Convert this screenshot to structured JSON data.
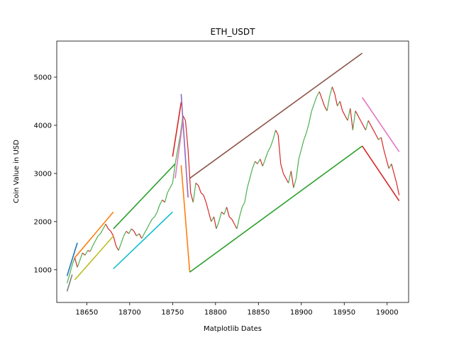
{
  "chart_data": {
    "type": "line",
    "title": "ETH_USDT",
    "xlabel": "Matplotlib Dates",
    "ylabel": "Coin Value in USD",
    "xlim": [
      18615,
      19025
    ],
    "ylim": [
      320,
      5750
    ],
    "x_ticks": [
      18650,
      18700,
      18750,
      18800,
      18850,
      18900,
      18950,
      19000
    ],
    "x_tick_labels": [
      "18650",
      "18700",
      "18750",
      "18800",
      "18850",
      "18900",
      "18950",
      "19000"
    ],
    "y_ticks": [
      1000,
      2000,
      3000,
      4000,
      5000
    ],
    "y_tick_labels": [
      "1000",
      "2000",
      "3000",
      "4000",
      "5000"
    ],
    "grid": false,
    "legend": "none",
    "price_series": {
      "name": "",
      "up_color": "#4caf50",
      "down_color": "#d62728",
      "x": [
        18627,
        18630,
        18633,
        18636,
        18639,
        18642,
        18645,
        18648,
        18651,
        18654,
        18657,
        18660,
        18663,
        18666,
        18669,
        18672,
        18675,
        18678,
        18681,
        18684,
        18687,
        18690,
        18693,
        18696,
        18699,
        18702,
        18705,
        18708,
        18711,
        18714,
        18717,
        18720,
        18723,
        18726,
        18729,
        18732,
        18735,
        18738,
        18741,
        18744,
        18747,
        18750,
        18753,
        18756,
        18759,
        18762,
        18765,
        18768,
        18771,
        18774,
        18777,
        18780,
        18783,
        18786,
        18789,
        18792,
        18795,
        18798,
        18801,
        18804,
        18807,
        18810,
        18813,
        18816,
        18819,
        18822,
        18825,
        18828,
        18831,
        18834,
        18837,
        18840,
        18843,
        18846,
        18849,
        18852,
        18855,
        18858,
        18861,
        18864,
        18867,
        18870,
        18873,
        18876,
        18879,
        18882,
        18885,
        18888,
        18891,
        18894,
        18897,
        18900,
        18903,
        18906,
        18909,
        18912,
        18915,
        18918,
        18921,
        18924,
        18927,
        18930,
        18933,
        18936,
        18939,
        18942,
        18945,
        18948,
        18951,
        18954,
        18957,
        18960,
        18963,
        18966,
        18969,
        18972,
        18975,
        18978,
        18981,
        18984,
        18987,
        18990,
        18993,
        18996,
        18999,
        19002,
        19005,
        19008,
        19011,
        19014
      ],
      "y": [
        720,
        900,
        1100,
        1250,
        1050,
        1200,
        1350,
        1300,
        1400,
        1380,
        1500,
        1600,
        1700,
        1750,
        1850,
        1950,
        1850,
        1800,
        1700,
        1500,
        1400,
        1550,
        1700,
        1800,
        1750,
        1850,
        1800,
        1700,
        1750,
        1650,
        1750,
        1850,
        1950,
        2050,
        2100,
        2200,
        2350,
        2450,
        2400,
        2600,
        2700,
        2800,
        3200,
        3500,
        3800,
        4200,
        4100,
        3500,
        2600,
        2400,
        2800,
        2750,
        2600,
        2550,
        2400,
        2200,
        2000,
        2100,
        1850,
        2000,
        2200,
        2150,
        2300,
        2100,
        2050,
        1950,
        1850,
        2100,
        2300,
        2400,
        2700,
        2900,
        3100,
        3250,
        3200,
        3300,
        3150,
        3300,
        3450,
        3550,
        3700,
        3900,
        3800,
        3200,
        3000,
        2900,
        2800,
        3050,
        2700,
        2900,
        3300,
        3500,
        3700,
        3850,
        4050,
        4300,
        4450,
        4600,
        4700,
        4550,
        4400,
        4300,
        4600,
        4800,
        4650,
        4400,
        4500,
        4300,
        4200,
        4100,
        4350,
        3900,
        4300,
        4200,
        4100,
        4000,
        3900,
        4100,
        4000,
        3900,
        3800,
        3700,
        3750,
        3500,
        3300,
        3100,
        3200,
        3000,
        2800,
        2550
      ]
    },
    "trend_lines": [
      {
        "name": "",
        "color": "#1f77b4",
        "x": [
          18627,
          18639
        ],
        "y": [
          870,
          1560
        ]
      },
      {
        "name": "",
        "color": "#7f7f7f",
        "x": [
          18627,
          18633
        ],
        "y": [
          550,
          900
        ]
      },
      {
        "name": "",
        "color": "#ff7f0e",
        "x": [
          18636,
          18681
        ],
        "y": [
          1250,
          2200
        ]
      },
      {
        "name": "",
        "color": "#bcbd22",
        "x": [
          18636,
          18681
        ],
        "y": [
          790,
          1700
        ]
      },
      {
        "name": "",
        "color": "#2ca02c",
        "x": [
          18681,
          18753
        ],
        "y": [
          1850,
          3200
        ]
      },
      {
        "name": "",
        "color": "#17becf",
        "x": [
          18681,
          18750
        ],
        "y": [
          1020,
          2200
        ]
      },
      {
        "name": "",
        "color": "#d62728",
        "x": [
          18750,
          18760
        ],
        "y": [
          3350,
          4480
        ]
      },
      {
        "name": "",
        "color": "#9467bd",
        "x": [
          18760,
          18768
        ],
        "y": [
          4650,
          2500
        ]
      },
      {
        "name": "",
        "color": "#e377c2",
        "x": [
          18753,
          18762
        ],
        "y": [
          2900,
          4100
        ]
      },
      {
        "name": "",
        "color": "#ff7f0e",
        "x": [
          18760,
          18770
        ],
        "y": [
          3170,
          950
        ]
      },
      {
        "name": "",
        "color": "#2ca02c",
        "x": [
          18770,
          18971
        ],
        "y": [
          950,
          3570
        ]
      },
      {
        "name": "",
        "color": "#8c564b",
        "x": [
          18770,
          18971
        ],
        "y": [
          2900,
          5500
        ]
      },
      {
        "name": "",
        "color": "#e377c2",
        "x": [
          18971,
          19014
        ],
        "y": [
          4580,
          3450
        ]
      },
      {
        "name": "",
        "color": "#d62728",
        "x": [
          18971,
          19014
        ],
        "y": [
          3570,
          2430
        ]
      }
    ]
  }
}
